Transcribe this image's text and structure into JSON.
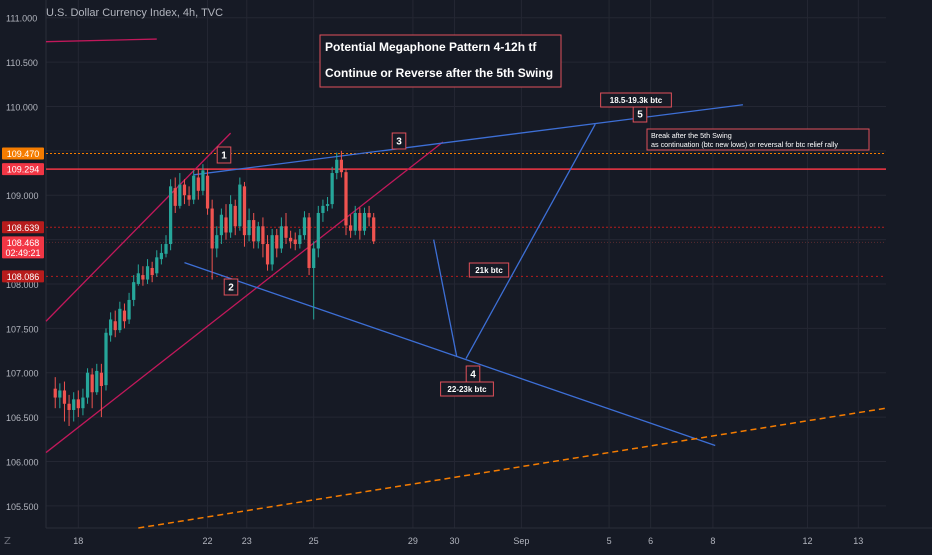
{
  "chart_data": {
    "type": "candlestick",
    "title": "U.S. Dollar Currency Index, 4h, TVC",
    "ylim": [
      105.25,
      111.2
    ],
    "y_ticks": [
      "111.000",
      "110.500",
      "110.000",
      "109.500",
      "109.000",
      "108.500",
      "108.000",
      "107.500",
      "107.000",
      "106.500",
      "106.000",
      "105.500"
    ],
    "x_ticks": [
      "18",
      "22",
      "23",
      "25",
      "29",
      "30",
      "Sep",
      "5",
      "6",
      "8",
      "12",
      "13"
    ],
    "x_tick_values": [
      5,
      33,
      41.5,
      56,
      77.5,
      86.5,
      101,
      120,
      129,
      142.5,
      163,
      174
    ],
    "x_range": [
      -2,
      180
    ],
    "colors": {
      "up": "#26a69a",
      "down": "#ef5350",
      "pink": "#c2185b",
      "blue": "#3d6fd6",
      "red": "#f23645",
      "orange": "#f57c00",
      "bg": "#161a25",
      "grid": "#242733",
      "axis_text": "#b2b5be"
    },
    "candles": [
      [
        0,
        106.82,
        106.72,
        106.95,
        106.6
      ],
      [
        1,
        106.72,
        106.8,
        106.88,
        106.6
      ],
      [
        2,
        106.8,
        106.65,
        106.9,
        106.45
      ],
      [
        3,
        106.65,
        106.58,
        106.75,
        106.4
      ],
      [
        4,
        106.58,
        106.7,
        106.78,
        106.45
      ],
      [
        5,
        106.7,
        106.6,
        106.8,
        106.5
      ],
      [
        6,
        106.6,
        106.72,
        106.82,
        106.52
      ],
      [
        7,
        106.72,
        107.0,
        107.05,
        106.65
      ],
      [
        8,
        106.98,
        106.78,
        107.05,
        106.6
      ],
      [
        9,
        106.78,
        107.02,
        107.1,
        106.75
      ],
      [
        10,
        107.0,
        106.85,
        107.1,
        106.5
      ],
      [
        11,
        106.86,
        107.45,
        107.5,
        106.8
      ],
      [
        12,
        107.42,
        107.6,
        107.68,
        107.35
      ],
      [
        13,
        107.58,
        107.48,
        107.7,
        107.4
      ],
      [
        14,
        107.48,
        107.72,
        107.8,
        107.45
      ],
      [
        15,
        107.7,
        107.58,
        107.78,
        107.5
      ],
      [
        16,
        107.6,
        107.82,
        107.9,
        107.55
      ],
      [
        17,
        107.82,
        108.02,
        108.1,
        107.75
      ],
      [
        18,
        108.0,
        108.12,
        108.22,
        107.98
      ],
      [
        19,
        108.1,
        108.05,
        108.2,
        107.98
      ],
      [
        20,
        108.05,
        108.2,
        108.28,
        108.0
      ],
      [
        21,
        108.18,
        108.1,
        108.25,
        108.02
      ],
      [
        22,
        108.12,
        108.3,
        108.38,
        108.08
      ],
      [
        23,
        108.28,
        108.35,
        108.45,
        108.22
      ],
      [
        24,
        108.34,
        108.45,
        108.55,
        108.3
      ],
      [
        25,
        108.45,
        109.1,
        109.18,
        108.38
      ],
      [
        26,
        109.08,
        108.88,
        109.2,
        108.8
      ],
      [
        27,
        108.88,
        109.12,
        109.25,
        108.85
      ],
      [
        28,
        109.12,
        109.0,
        109.18,
        108.9
      ],
      [
        29,
        109.0,
        108.95,
        109.1,
        108.88
      ],
      [
        30,
        108.95,
        109.22,
        109.28,
        108.9
      ],
      [
        31,
        109.2,
        109.05,
        109.3,
        108.95
      ],
      [
        32,
        109.05,
        109.28,
        109.35,
        109.0
      ],
      [
        33,
        109.22,
        108.85,
        109.3,
        108.78
      ],
      [
        34,
        108.85,
        108.4,
        108.95,
        108.05
      ],
      [
        35,
        108.4,
        108.55,
        108.65,
        108.3
      ],
      [
        36,
        108.55,
        108.78,
        108.85,
        108.45
      ],
      [
        37,
        108.75,
        108.58,
        108.9,
        108.5
      ],
      [
        38,
        108.58,
        108.9,
        109.0,
        108.52
      ],
      [
        39,
        108.88,
        108.65,
        108.95,
        108.55
      ],
      [
        40,
        108.65,
        109.12,
        109.2,
        108.6
      ],
      [
        41,
        109.1,
        108.55,
        109.15,
        108.42
      ],
      [
        42,
        108.55,
        108.72,
        108.85,
        108.48
      ],
      [
        43,
        108.72,
        108.48,
        108.8,
        108.4
      ],
      [
        44,
        108.48,
        108.65,
        108.7,
        108.4
      ],
      [
        45,
        108.65,
        108.45,
        108.75,
        108.3
      ],
      [
        46,
        108.45,
        108.22,
        108.55,
        108.15
      ],
      [
        47,
        108.22,
        108.55,
        108.62,
        108.15
      ],
      [
        48,
        108.55,
        108.4,
        108.62,
        108.3
      ],
      [
        49,
        108.4,
        108.65,
        108.75,
        108.35
      ],
      [
        50,
        108.65,
        108.52,
        108.8,
        108.45
      ],
      [
        51,
        108.52,
        108.48,
        108.6,
        108.4
      ],
      [
        52,
        108.5,
        108.45,
        108.58,
        108.38
      ],
      [
        53,
        108.45,
        108.55,
        108.62,
        108.4
      ],
      [
        54,
        108.55,
        108.75,
        108.82,
        108.5
      ],
      [
        55,
        108.75,
        108.18,
        108.8,
        108.1
      ],
      [
        56,
        108.18,
        108.4,
        108.48,
        107.6
      ],
      [
        57,
        108.4,
        108.8,
        108.88,
        108.3
      ],
      [
        58,
        108.8,
        108.88,
        108.95,
        108.7
      ],
      [
        59,
        108.88,
        108.9,
        108.98,
        108.82
      ],
      [
        60,
        108.9,
        109.25,
        109.32,
        108.85
      ],
      [
        61,
        109.25,
        109.4,
        109.48,
        109.18
      ],
      [
        62,
        109.4,
        109.26,
        109.5,
        109.2
      ],
      [
        63,
        109.26,
        108.66,
        109.3,
        108.55
      ],
      [
        64,
        108.66,
        108.6,
        108.78,
        108.52
      ],
      [
        65,
        108.6,
        108.8,
        108.88,
        108.55
      ],
      [
        66,
        108.8,
        108.6,
        108.86,
        108.5
      ],
      [
        67,
        108.6,
        108.8,
        108.86,
        108.55
      ],
      [
        68,
        108.8,
        108.75,
        108.88,
        108.65
      ],
      [
        69,
        108.75,
        108.48,
        108.8,
        108.45
      ]
    ],
    "drawings": {
      "top_left_segment": [
        [
          -2,
          110.73
        ],
        [
          22,
          110.76
        ]
      ],
      "pink_upper": [
        [
          -2,
          107.58
        ],
        [
          38,
          109.7
        ]
      ],
      "pink_lower": [
        [
          -2,
          106.1
        ],
        [
          84,
          109.6
        ]
      ],
      "blue_upper": [
        [
          30,
          109.23
        ],
        [
          149,
          110.02
        ]
      ],
      "blue_lower": [
        [
          28,
          108.24
        ],
        [
          143,
          106.18
        ]
      ],
      "blue_drop": [
        [
          82,
          108.5
        ],
        [
          87,
          107.18
        ]
      ],
      "blue_rise": [
        [
          89,
          107.16
        ],
        [
          117,
          109.8
        ]
      ],
      "orange_dashed": [
        [
          18,
          105.25
        ],
        [
          180,
          106.6
        ]
      ],
      "hline_109294": 109.294,
      "hline_109470": 109.47,
      "hline_108639": 108.639,
      "hline_108468": 108.468,
      "hline_108086": 108.086
    },
    "annotations": {
      "box_line1": "Potential Megaphone Pattern      4-12h tf",
      "box_line2": "Continue or Reverse after the 5th Swing",
      "label_1": "1",
      "label_2": "2",
      "label_3": "3",
      "label_4": "4",
      "label_5": "5",
      "btc_5": "18.5-19.3k btc",
      "btc_21": "21k btc",
      "btc_4": "22-23k btc",
      "note_line1": "Break after the 5th Swing",
      "note_line2": "as continuation (btc new lows) or reversal for btc relief rally"
    },
    "price_tags": [
      {
        "text": "109.470",
        "value": 109.47,
        "color": "#f57c00"
      },
      {
        "text": "109.294",
        "value": 109.294,
        "color": "#f23645"
      },
      {
        "text": "108.639",
        "value": 108.639,
        "color": "#b71c1c"
      },
      {
        "text": "108.468",
        "value": 108.468,
        "color": "#f23645",
        "sub": "02:49:21"
      },
      {
        "text": "108.086",
        "value": 108.086,
        "color": "#b71c1c"
      }
    ]
  },
  "corner_mark": "Z"
}
